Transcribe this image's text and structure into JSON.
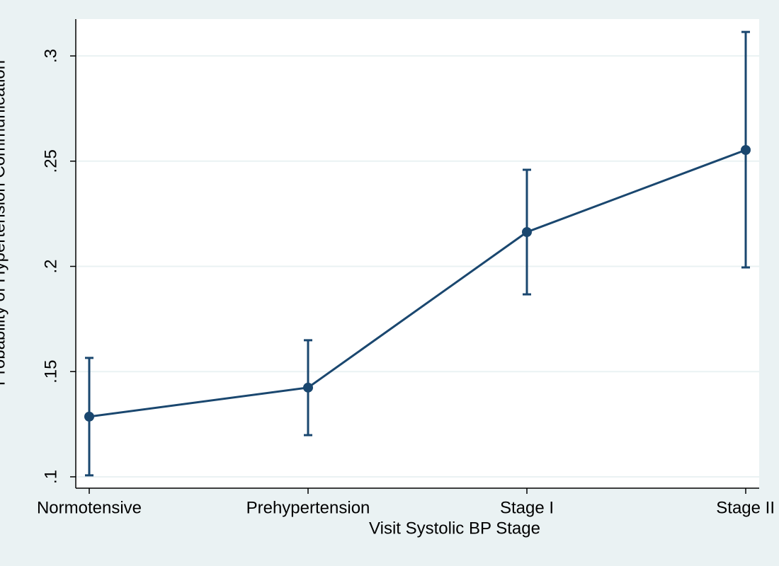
{
  "chart_data": {
    "type": "line",
    "x_label": "Visit Systolic BP Stage",
    "y_label": "Probability of Hypertension Communication",
    "categories": [
      "Normotensive",
      "Prehypertension",
      "Stage I",
      "Stage II"
    ],
    "values": [
      0.1286,
      0.1424,
      0.2163,
      0.2553
    ],
    "ci_lower": [
      0.1007,
      0.1198,
      0.1867,
      0.1995
    ],
    "ci_upper": [
      0.1565,
      0.1649,
      0.2459,
      0.3114
    ],
    "color": "#1a476f",
    "ylim": [
      0.0946,
      0.3175
    ],
    "yticks": [
      {
        "value": 0.1,
        "label": ".1"
      },
      {
        "value": 0.15,
        "label": ".15"
      },
      {
        "value": 0.2,
        "label": ".2"
      },
      {
        "value": 0.25,
        "label": ".25"
      },
      {
        "value": 0.3,
        "label": ".3"
      }
    ],
    "grid": true
  }
}
